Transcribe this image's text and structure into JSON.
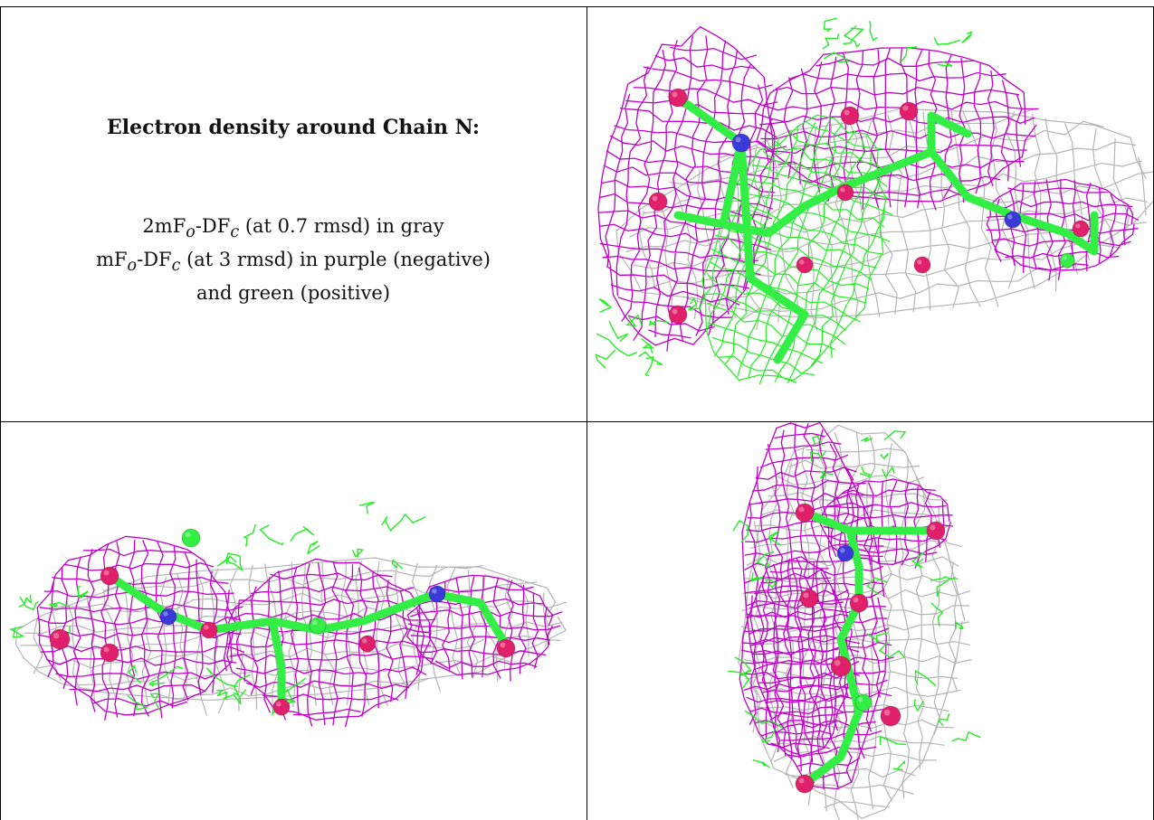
{
  "panel_caption": {
    "title": "Electron density around Chain N:",
    "line1_a": "2mF",
    "line1_sub1": "o",
    "line1_b": "-DF",
    "line1_sub2": "c",
    "line1_c": " (at 0.7 rmsd) in gray",
    "line2_a": "mF",
    "line2_sub1": "o",
    "line2_b": "-DF",
    "line2_sub2": "c",
    "line2_c": " (at 3 rmsd) in purple (negative)",
    "line3": "and green (positive)"
  },
  "colors": {
    "gray_mesh": "#b4b4b4",
    "purple_mesh": "#c000c8",
    "green_mesh": "#22ee22",
    "oxygen": "#e0206a",
    "nitrogen": "#3a3ad8",
    "carbon": "#33ee44"
  },
  "views": [
    "view-top-right",
    "view-bottom-left",
    "view-bottom-right"
  ]
}
